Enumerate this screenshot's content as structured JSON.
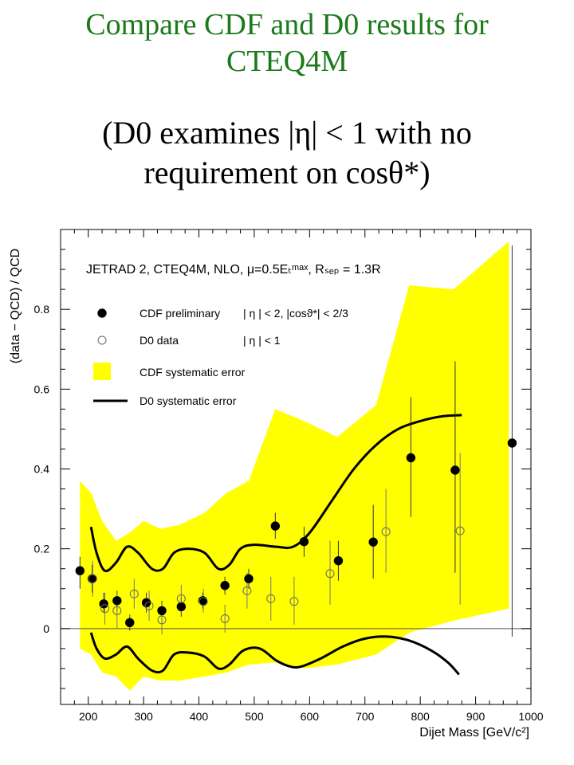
{
  "slide": {
    "title_line1": "Compare CDF and D0 results for",
    "title_line2": "CTEQ4M",
    "subtitle_line1": "(D0 examines |η| < 1 with no",
    "subtitle_line2": "requirement on cosθ*)"
  },
  "chart_data": {
    "type": "scatter",
    "xlabel": "Dijet Mass [GeV/c²]",
    "ylabel": "(data − QCD) / QCD",
    "xlim": [
      150,
      1000
    ],
    "ylim": [
      -0.19,
      1.0
    ],
    "x_ticks": [
      200,
      300,
      400,
      500,
      600,
      700,
      800,
      900,
      1000
    ],
    "y_ticks": [
      0,
      0.2,
      0.4,
      0.6,
      0.8
    ],
    "y_tick_labels": [
      "0",
      "0.2",
      "0.4",
      "0.6",
      "0.8"
    ],
    "annotation": "JETRAD 2, CTEQ4M, NLO, μ=0.5Eₜᵐᵃˣ, Rₛₑₚ = 1.3R",
    "legend": {
      "placement": "top-left",
      "entries": [
        {
          "label": "CDF preliminary",
          "cuts": "| η | < 2, |cosϑ*| < 2/3",
          "marker": "filled-circle"
        },
        {
          "label": "D0 data",
          "cuts": "| η | < 1",
          "marker": "open-circle"
        },
        {
          "label": "CDF systematic error",
          "cuts": "",
          "marker": "yellow-box"
        },
        {
          "label": "D0 systematic error",
          "cuts": "",
          "marker": "black-line"
        }
      ]
    },
    "colors": {
      "band": "#ffff00",
      "line": "#000000",
      "title": "#1a7a1a"
    },
    "series": [
      {
        "name": "CDF preliminary",
        "points": [
          {
            "x": 185,
            "y": 0.145,
            "lo": 0.1,
            "hi": 0.18
          },
          {
            "x": 207,
            "y": 0.125,
            "lo": 0.09,
            "hi": 0.16
          },
          {
            "x": 228,
            "y": 0.062,
            "lo": 0.04,
            "hi": 0.09
          },
          {
            "x": 252,
            "y": 0.07,
            "lo": 0.045,
            "hi": 0.095
          },
          {
            "x": 275,
            "y": 0.015,
            "lo": -0.005,
            "hi": 0.035
          },
          {
            "x": 305,
            "y": 0.065,
            "lo": 0.04,
            "hi": 0.09
          },
          {
            "x": 333,
            "y": 0.045,
            "lo": 0.02,
            "hi": 0.07
          },
          {
            "x": 368,
            "y": 0.055,
            "lo": 0.03,
            "hi": 0.08
          },
          {
            "x": 407,
            "y": 0.07,
            "lo": 0.05,
            "hi": 0.09
          },
          {
            "x": 447,
            "y": 0.108,
            "lo": 0.085,
            "hi": 0.13
          },
          {
            "x": 490,
            "y": 0.125,
            "lo": 0.1,
            "hi": 0.15
          },
          {
            "x": 538,
            "y": 0.257,
            "lo": 0.225,
            "hi": 0.29
          },
          {
            "x": 590,
            "y": 0.218,
            "lo": 0.18,
            "hi": 0.255
          },
          {
            "x": 652,
            "y": 0.17,
            "lo": 0.12,
            "hi": 0.22
          },
          {
            "x": 715,
            "y": 0.217,
            "lo": 0.125,
            "hi": 0.31
          },
          {
            "x": 783,
            "y": 0.428,
            "lo": 0.28,
            "hi": 0.58
          },
          {
            "x": 863,
            "y": 0.397,
            "lo": 0.14,
            "hi": 0.67
          },
          {
            "x": 966,
            "y": 0.465,
            "lo": -0.02,
            "hi": 0.96
          }
        ]
      },
      {
        "name": "D0 data",
        "points": [
          {
            "x": 208,
            "y": 0.125,
            "lo": 0.08,
            "hi": 0.17
          },
          {
            "x": 230,
            "y": 0.05,
            "lo": 0.01,
            "hi": 0.09
          },
          {
            "x": 252,
            "y": 0.045,
            "lo": 0.0,
            "hi": 0.09
          },
          {
            "x": 283,
            "y": 0.087,
            "lo": 0.05,
            "hi": 0.125
          },
          {
            "x": 310,
            "y": 0.057,
            "lo": 0.02,
            "hi": 0.095
          },
          {
            "x": 333,
            "y": 0.022,
            "lo": -0.015,
            "hi": 0.06
          },
          {
            "x": 368,
            "y": 0.075,
            "lo": 0.04,
            "hi": 0.11
          },
          {
            "x": 408,
            "y": 0.068,
            "lo": 0.04,
            "hi": 0.1
          },
          {
            "x": 447,
            "y": 0.025,
            "lo": -0.01,
            "hi": 0.06
          },
          {
            "x": 487,
            "y": 0.095,
            "lo": 0.05,
            "hi": 0.14
          },
          {
            "x": 530,
            "y": 0.075,
            "lo": 0.02,
            "hi": 0.13
          },
          {
            "x": 572,
            "y": 0.068,
            "lo": 0.01,
            "hi": 0.13
          },
          {
            "x": 637,
            "y": 0.138,
            "lo": 0.06,
            "hi": 0.22
          },
          {
            "x": 738,
            "y": 0.243,
            "lo": 0.14,
            "hi": 0.35
          },
          {
            "x": 872,
            "y": 0.245,
            "lo": 0.06,
            "hi": 0.44
          }
        ]
      }
    ],
    "cdf_systematic_band": {
      "upper": [
        [
          185,
          0.37
        ],
        [
          205,
          0.34
        ],
        [
          225,
          0.27
        ],
        [
          250,
          0.22
        ],
        [
          275,
          0.24
        ],
        [
          300,
          0.27
        ],
        [
          330,
          0.25
        ],
        [
          365,
          0.26
        ],
        [
          410,
          0.29
        ],
        [
          450,
          0.34
        ],
        [
          490,
          0.37
        ],
        [
          538,
          0.55
        ],
        [
          590,
          0.52
        ],
        [
          650,
          0.48
        ],
        [
          720,
          0.56
        ],
        [
          780,
          0.86
        ],
        [
          860,
          0.85
        ],
        [
          960,
          0.97
        ]
      ],
      "lower": [
        [
          960,
          0.05
        ],
        [
          860,
          0.02
        ],
        [
          780,
          -0.01
        ],
        [
          720,
          -0.065
        ],
        [
          650,
          -0.09
        ],
        [
          590,
          -0.1
        ],
        [
          538,
          -0.085
        ],
        [
          490,
          -0.09
        ],
        [
          450,
          -0.11
        ],
        [
          410,
          -0.12
        ],
        [
          365,
          -0.13
        ],
        [
          330,
          -0.13
        ],
        [
          300,
          -0.12
        ],
        [
          275,
          -0.155
        ],
        [
          250,
          -0.12
        ],
        [
          225,
          -0.11
        ],
        [
          205,
          -0.065
        ],
        [
          185,
          -0.05
        ]
      ]
    },
    "d0_systematic_upper": [
      [
        205,
        0.255
      ],
      [
        215,
        0.19
      ],
      [
        230,
        0.145
      ],
      [
        250,
        0.165
      ],
      [
        270,
        0.205
      ],
      [
        290,
        0.19
      ],
      [
        315,
        0.15
      ],
      [
        335,
        0.15
      ],
      [
        355,
        0.19
      ],
      [
        380,
        0.2
      ],
      [
        410,
        0.19
      ],
      [
        435,
        0.15
      ],
      [
        455,
        0.16
      ],
      [
        475,
        0.2
      ],
      [
        500,
        0.21
      ],
      [
        540,
        0.205
      ],
      [
        570,
        0.205
      ],
      [
        600,
        0.24
      ],
      [
        640,
        0.32
      ],
      [
        680,
        0.4
      ],
      [
        720,
        0.46
      ],
      [
        760,
        0.5
      ],
      [
        800,
        0.52
      ],
      [
        840,
        0.532
      ],
      [
        875,
        0.535
      ]
    ],
    "d0_systematic_lower": [
      [
        205,
        -0.01
      ],
      [
        215,
        -0.05
      ],
      [
        230,
        -0.075
      ],
      [
        250,
        -0.065
      ],
      [
        270,
        -0.045
      ],
      [
        290,
        -0.075
      ],
      [
        315,
        -0.105
      ],
      [
        335,
        -0.105
      ],
      [
        355,
        -0.065
      ],
      [
        380,
        -0.06
      ],
      [
        410,
        -0.07
      ],
      [
        435,
        -0.1
      ],
      [
        455,
        -0.09
      ],
      [
        480,
        -0.055
      ],
      [
        510,
        -0.05
      ],
      [
        540,
        -0.08
      ],
      [
        565,
        -0.095
      ],
      [
        585,
        -0.095
      ],
      [
        620,
        -0.075
      ],
      [
        660,
        -0.045
      ],
      [
        700,
        -0.025
      ],
      [
        740,
        -0.02
      ],
      [
        780,
        -0.03
      ],
      [
        820,
        -0.055
      ],
      [
        850,
        -0.085
      ],
      [
        870,
        -0.115
      ]
    ]
  }
}
